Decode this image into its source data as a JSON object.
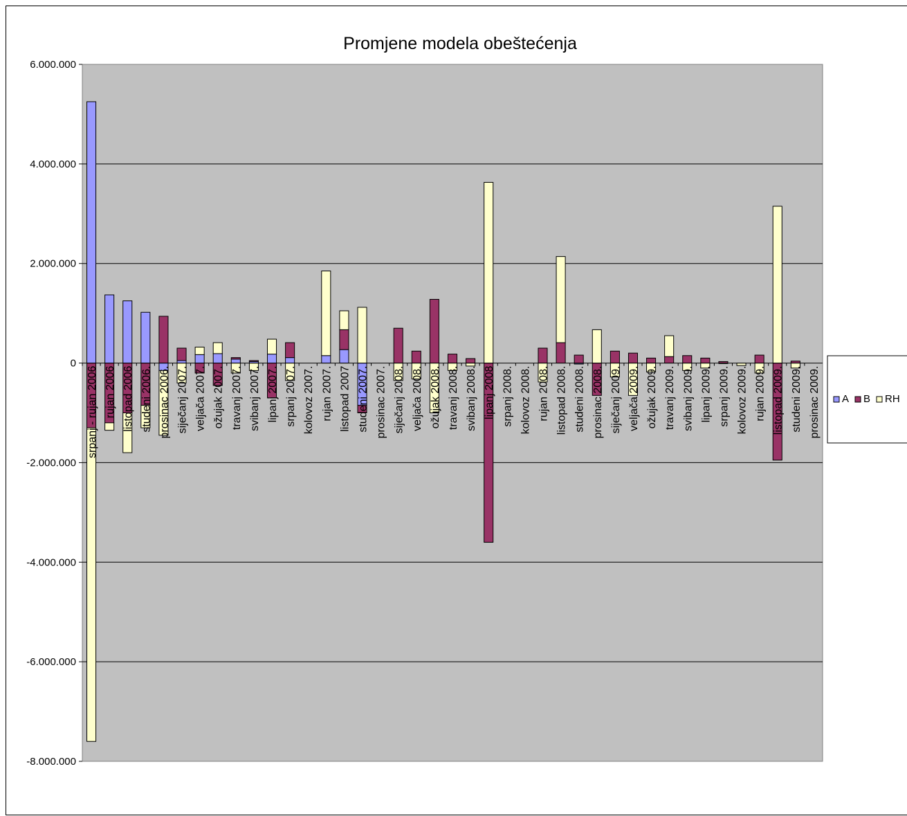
{
  "chart_data": {
    "type": "bar",
    "stacked": true,
    "title": "Promjene modela obeštećenja",
    "xlabel": "",
    "ylabel": "",
    "ylim": [
      -8000000,
      6000000
    ],
    "ytick_values": [
      6000000,
      4000000,
      2000000,
      0,
      -2000000,
      -4000000,
      -6000000,
      -8000000
    ],
    "ytick_labels": [
      "6.000.000",
      "4.000.000",
      "2.000.000",
      "0",
      "-2.000.000",
      "-4.000.000",
      "-6.000.000",
      "-8.000.000"
    ],
    "grid": true,
    "legend_position": "right",
    "plot_background": "#c0c0c0",
    "categories": [
      "srpanj - rujan 2006",
      "rujan 2006",
      "listopad 2006",
      "studeni 2006.",
      "prosinac 2006.",
      "siječanj 2007.",
      "veljača 2007.",
      "ožujak 2007.",
      "travanj 2007.",
      "svibanj 2007.",
      "lipanj 2007.",
      "srpanj 2007.",
      "kolovoz 2007.",
      "rujan 2007.",
      "listopad 2007",
      "studeni 2007.",
      "prosinac 2007.",
      "siječanj 2008.",
      "veljača 2008.",
      "ožujak 2008.",
      "travanj 2008.",
      "svibanj 2008.",
      "lipanj 2008",
      "srpanj 2008.",
      "kolovoz 2008.",
      "rujan 2008.",
      "listopad 2008.",
      "studeni 2008.",
      "prosinac 2008.",
      "siječanj 2009.",
      "veljača 2009.",
      "ožujak 2009.",
      "travanj 2009.",
      "svibanj 2009.",
      "lipanj 2009.",
      "srpanj 2009.",
      "kolovoz 2009.",
      "rujan 2009.",
      "listopad 2009.",
      "studeni 2009.",
      "prosinac 2009."
    ],
    "series": [
      {
        "name": "A",
        "color": "#9999ff",
        "values": [
          5250000,
          1370000,
          1250000,
          1020000,
          -150000,
          50000,
          170000,
          190000,
          80000,
          30000,
          180000,
          110000,
          0,
          150000,
          270000,
          -850000,
          0,
          0,
          0,
          0,
          0,
          0,
          0,
          0,
          0,
          0,
          0,
          -20000,
          0,
          0,
          0,
          0,
          0,
          0,
          0,
          0,
          0,
          0,
          0,
          0,
          0
        ]
      },
      {
        "name": "B",
        "color": "#993366",
        "values": [
          -1300000,
          -1200000,
          -1000000,
          -850000,
          940000,
          250000,
          -200000,
          -450000,
          30000,
          20000,
          -700000,
          300000,
          0,
          0,
          400000,
          -150000,
          0,
          700000,
          240000,
          1280000,
          180000,
          90000,
          -3600000,
          0,
          0,
          300000,
          410000,
          160000,
          -650000,
          240000,
          200000,
          100000,
          130000,
          150000,
          100000,
          30000,
          0,
          160000,
          -1950000,
          40000,
          0
        ]
      },
      {
        "name": "RH",
        "color": "#ffffcc",
        "values": [
          -6300000,
          -150000,
          -800000,
          -450000,
          -1300000,
          -400000,
          150000,
          220000,
          -200000,
          -150000,
          300000,
          -350000,
          0,
          1700000,
          380000,
          1120000,
          0,
          -350000,
          -320000,
          -1000000,
          -150000,
          -60000,
          3630000,
          0,
          0,
          -380000,
          1730000,
          0,
          670000,
          -280000,
          -650000,
          -180000,
          420000,
          -150000,
          -100000,
          -10000,
          -50000,
          -200000,
          3150000,
          -100000,
          0
        ]
      }
    ]
  }
}
